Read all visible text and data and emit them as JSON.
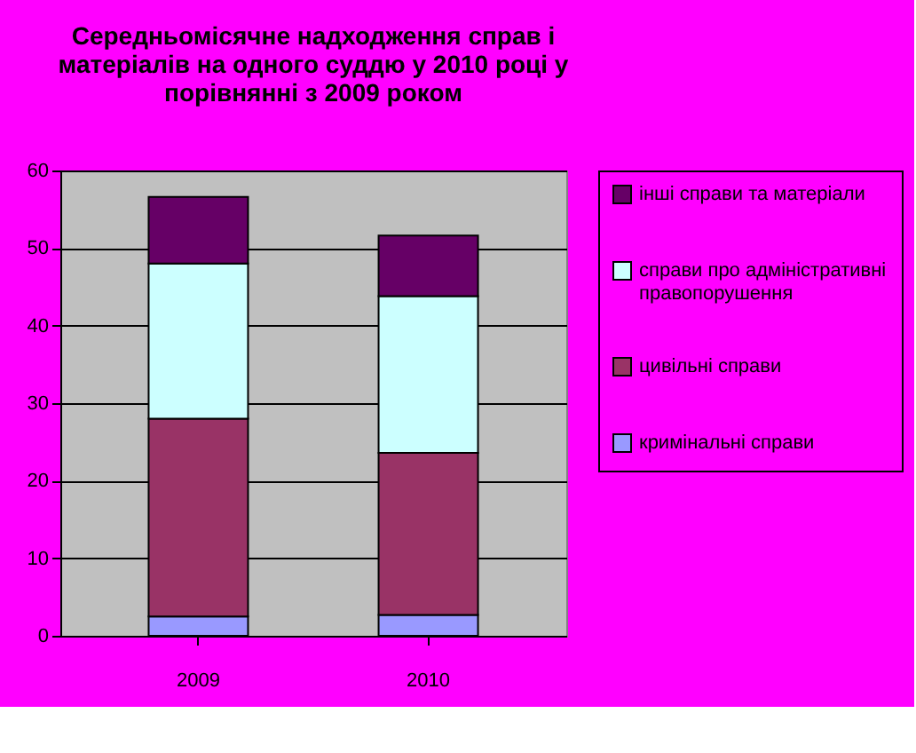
{
  "chart_data": {
    "type": "bar",
    "title": "Середньомісячне надходження справ і матеріалів на одного суддю у 2010 році у порівнянні з 2009 роком",
    "categories": [
      "2009",
      "2010"
    ],
    "stacked": true,
    "series": [
      {
        "name": "кримінальні справи",
        "color": "#9999ff",
        "values": [
          2.5,
          2.7
        ]
      },
      {
        "name": "цивільні справи",
        "color": "#993366",
        "values": [
          25.5,
          20.9
        ]
      },
      {
        "name": "справи про адміністративні правопорушення",
        "color": "#ccffff",
        "values": [
          20,
          20.2
        ]
      },
      {
        "name": "інші справи та матеріали",
        "color": "#660066",
        "values": [
          8.6,
          7.8
        ]
      }
    ],
    "ylim": [
      0,
      60
    ],
    "yticks": [
      0,
      10,
      20,
      30,
      40,
      50,
      60
    ],
    "grid": "y",
    "legend": "right"
  }
}
